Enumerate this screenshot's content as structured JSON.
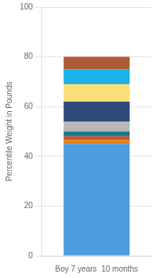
{
  "chart_data": {
    "type": "bar",
    "stacked": true,
    "categories": [
      "Boy 7 years  10 months"
    ],
    "series": [
      {
        "color": "#4d9de0",
        "values": [
          45.0
        ]
      },
      {
        "color": "#e8820a",
        "values": [
          1.5
        ]
      },
      {
        "color": "#d94e1f",
        "values": [
          1.5
        ]
      },
      {
        "color": "#1a7a8a",
        "values": [
          2.0
        ]
      },
      {
        "color": "#b8b8b8",
        "values": [
          4.0
        ]
      },
      {
        "color": "#2d4a7a",
        "values": [
          8.0
        ]
      },
      {
        "color": "#f9e07a",
        "values": [
          7.0
        ]
      },
      {
        "color": "#1ab2e8",
        "values": [
          6.0
        ]
      },
      {
        "color": "#b05a3a",
        "values": [
          5.0
        ]
      }
    ],
    "y_label": "Percentile Weight in Pounds",
    "ylim": [
      0,
      100
    ],
    "yticks": [
      0,
      20,
      40,
      60,
      80,
      100
    ],
    "grid": true
  }
}
